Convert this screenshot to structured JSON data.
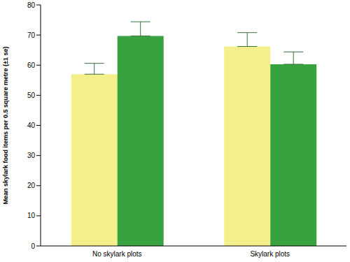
{
  "chart_data": {
    "type": "bar",
    "categories": [
      "No skylark plots",
      "Skylark plots"
    ],
    "y_label": "Mean skylark food items per 0.5 square metre (±1 se)",
    "series": [
      {
        "color": "#f3f08b",
        "values": [
          57,
          66.2
        ],
        "errors": [
          3.6,
          4.6
        ]
      },
      {
        "color": "#37a23f",
        "values": [
          69.7,
          60.3
        ],
        "errors": [
          4.7,
          4.1
        ]
      }
    ],
    "ylim": [
      0,
      80
    ],
    "yticks": [
      0,
      10,
      20,
      30,
      40,
      50,
      60,
      70,
      80
    ],
    "grid": false
  }
}
